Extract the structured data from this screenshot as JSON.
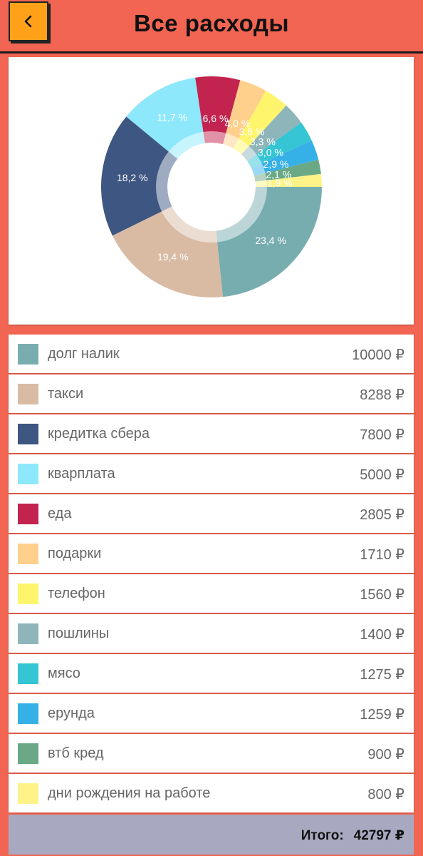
{
  "header": {
    "title": "Все расходы",
    "back_icon": "chevron-left-icon"
  },
  "colors": {
    "background": "#f26552",
    "back_button": "#ffa21a",
    "total_bar": "#a8a9c0"
  },
  "chart_data": {
    "type": "pie",
    "style": "donut",
    "title": "",
    "slices": [
      {
        "label": "долг налик",
        "value": 10000,
        "percent_label": "23,4 %",
        "color": "#78adb0"
      },
      {
        "label": "такси",
        "value": 8288,
        "percent_label": "19,4 %",
        "color": "#d9bba4"
      },
      {
        "label": "кредитка сбера",
        "value": 7800,
        "percent_label": "18,2 %",
        "color": "#3d5682"
      },
      {
        "label": "кварплата",
        "value": 5000,
        "percent_label": "11,7 %",
        "color": "#8ee8fb"
      },
      {
        "label": "еда",
        "value": 2805,
        "percent_label": "6,6 %",
        "color": "#c2244f"
      },
      {
        "label": "подарки",
        "value": 1710,
        "percent_label": "4,0 %",
        "color": "#ffcf8c"
      },
      {
        "label": "телефон",
        "value": 1560,
        "percent_label": "3,6 %",
        "color": "#fff56c"
      },
      {
        "label": "пошлины",
        "value": 1400,
        "percent_label": "3,3 %",
        "color": "#8eb5ba"
      },
      {
        "label": "мясо",
        "value": 1275,
        "percent_label": "3,0 %",
        "color": "#35c5d4"
      },
      {
        "label": "ерунда",
        "value": 1259,
        "percent_label": "2,9 %",
        "color": "#36b1e8"
      },
      {
        "label": "втб кред",
        "value": 900,
        "percent_label": "2,1 %",
        "color": "#6aa886"
      },
      {
        "label": "дни рождения на работе",
        "value": 800,
        "percent_label": "1,9 %",
        "color": "#fff388"
      }
    ]
  },
  "items": [
    {
      "label": "долг налик",
      "amount": "10000 ₽",
      "color": "#78adb0"
    },
    {
      "label": "такси",
      "amount": "8288 ₽",
      "color": "#d9bba4"
    },
    {
      "label": "кредитка сбера",
      "amount": "7800 ₽",
      "color": "#3d5682"
    },
    {
      "label": "кварплата",
      "amount": "5000 ₽",
      "color": "#8ee8fb"
    },
    {
      "label": "еда",
      "amount": "2805 ₽",
      "color": "#c2244f"
    },
    {
      "label": "подарки",
      "amount": "1710 ₽",
      "color": "#ffcf8c"
    },
    {
      "label": "телефон",
      "amount": "1560 ₽",
      "color": "#fff56c"
    },
    {
      "label": "пошлины",
      "amount": "1400 ₽",
      "color": "#8eb5ba"
    },
    {
      "label": "мясо",
      "amount": "1275 ₽",
      "color": "#35c5d4"
    },
    {
      "label": "ерунда",
      "amount": "1259 ₽",
      "color": "#36b1e8"
    },
    {
      "label": "втб кред",
      "amount": "900 ₽",
      "color": "#6aa886"
    },
    {
      "label": "дни рождения на работе",
      "amount": "800 ₽",
      "color": "#fff388"
    }
  ],
  "total": {
    "label": "Итого:",
    "value": "42797 ₽"
  }
}
